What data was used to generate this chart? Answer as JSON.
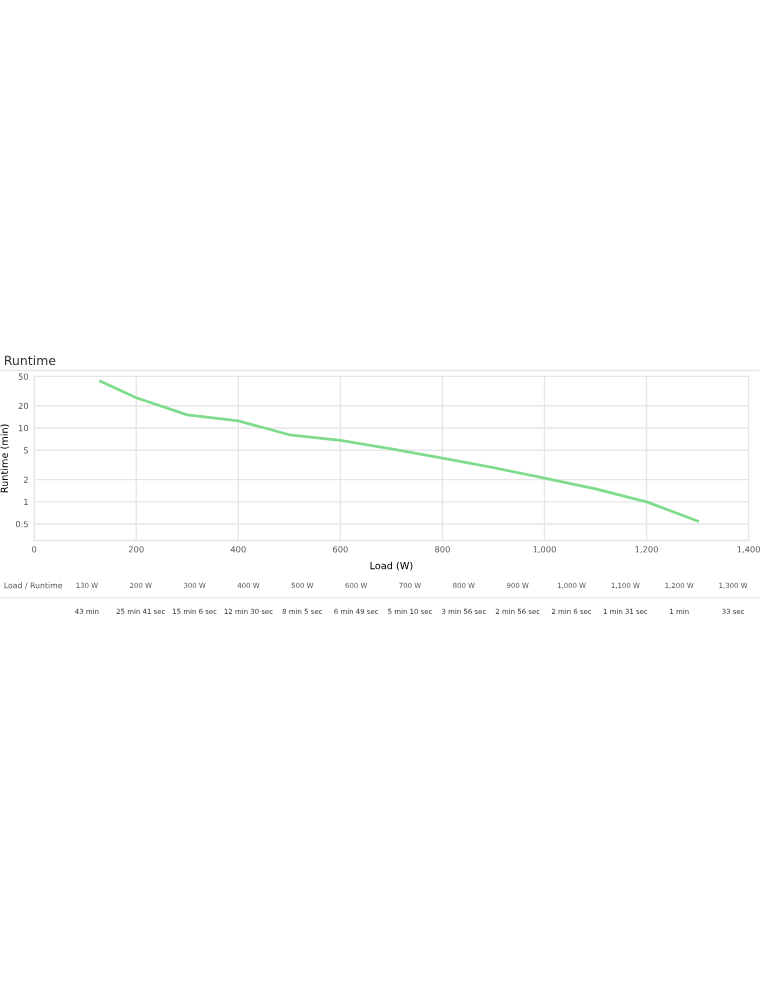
{
  "chart_data": {
    "type": "line",
    "title": "Runtime",
    "xlabel": "Load (W)",
    "ylabel": "Runtime (min)",
    "x": [
      130,
      200,
      300,
      400,
      500,
      600,
      700,
      800,
      900,
      1000,
      1100,
      1200,
      1300
    ],
    "series": [
      {
        "color": "#7fdc8c",
        "values": [
          43,
          25.7,
          15.1,
          12.5,
          8.1,
          6.8,
          5.2,
          3.9,
          2.9,
          2.1,
          1.5,
          1,
          0.55
        ]
      }
    ],
    "annotations": [
      "Load / Runtime",
      "130 W",
      "200 W",
      "300 W",
      "400 W",
      "500 W",
      "600 W",
      "700 W",
      "800 W",
      "900 W",
      "1,000 W",
      "1,100 W",
      "1,200 W",
      "1,300 W",
      "43 min",
      "25 min 41 sec",
      "15 min 6 sec",
      "12 min 30 sec",
      "8 min 5 sec",
      "6 min 49 sec",
      "5 min 10 sec",
      "3 min 56 sec",
      "2 min 56 sec",
      "2 min 6 sec",
      "1 min 31 sec",
      "1 min",
      "33 sec"
    ],
    "log": "y",
    "xlim": [
      0,
      1400
    ],
    "xticks": [
      0,
      200,
      400,
      600,
      800,
      {
        "value": 1000,
        "label": "1,000"
      },
      {
        "value": 1200,
        "label": "1,200"
      },
      {
        "value": 1400,
        "label": "1,400"
      }
    ],
    "ylim": [
      0.3,
      50
    ],
    "yticks": [
      50,
      20,
      10,
      5,
      2,
      1,
      0.5
    ],
    "grid": true,
    "marker": "none",
    "line_style": "solid"
  }
}
